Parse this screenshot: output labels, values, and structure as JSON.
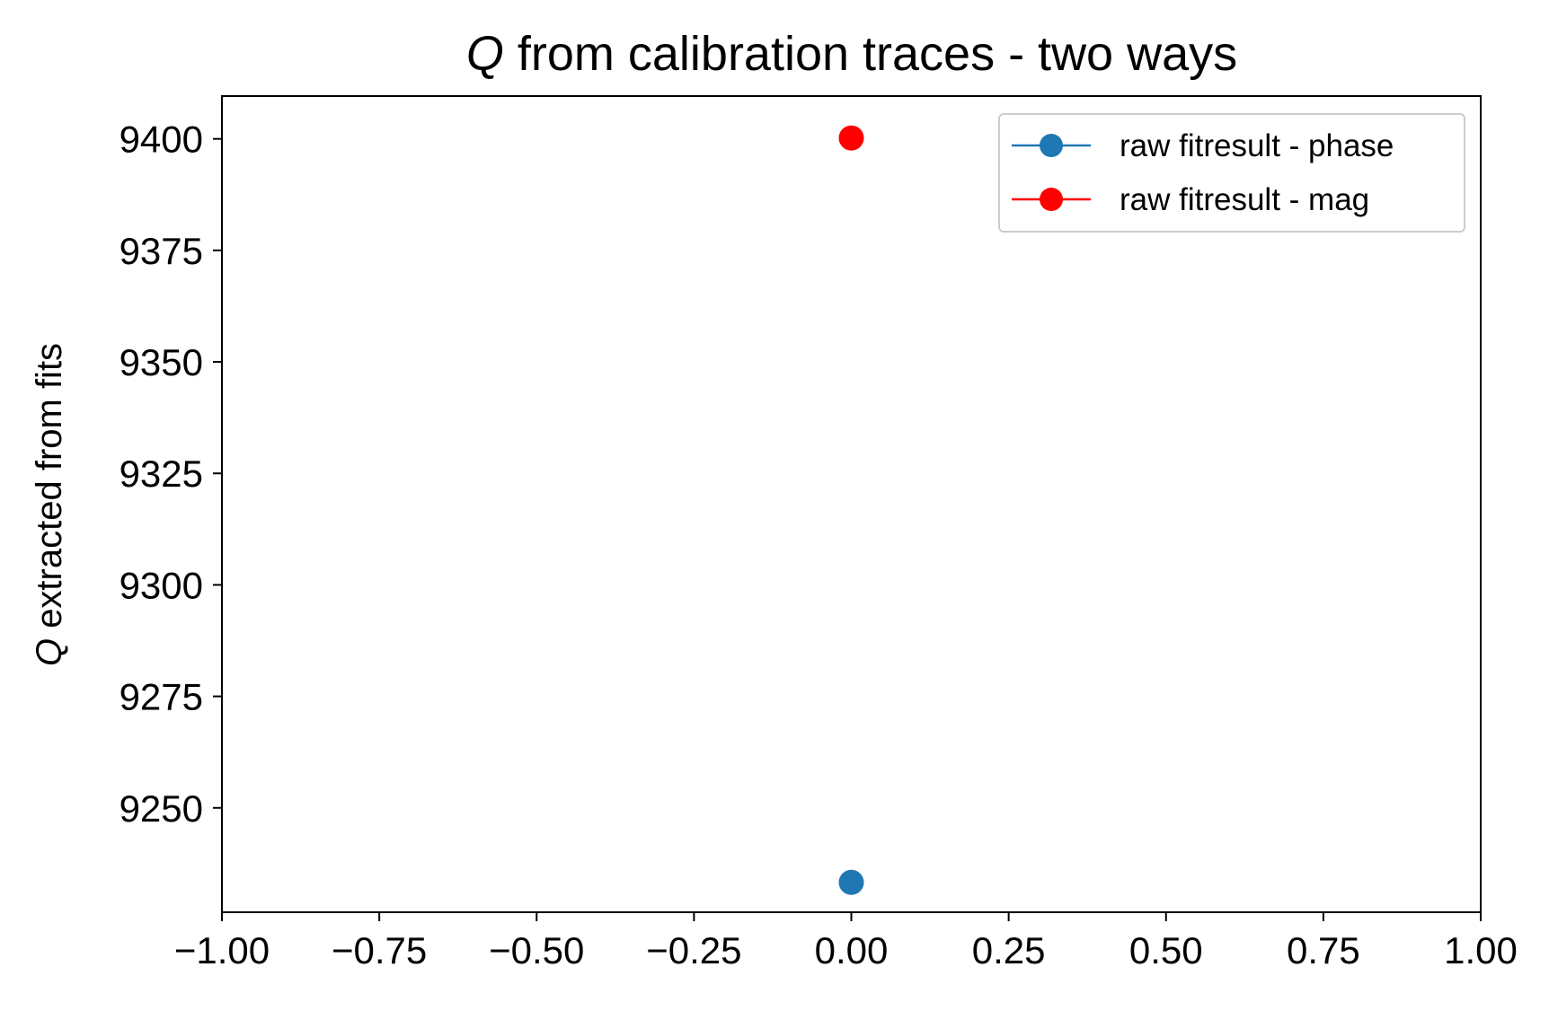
{
  "chart_data": {
    "type": "scatter",
    "title": {
      "q": "Q",
      "rest": " from calibration traces - two ways"
    },
    "xlabel": "",
    "ylabel": {
      "q": "Q",
      "rest": " extracted from fits"
    },
    "xlim": [
      -1.0,
      1.0
    ],
    "ylim": [
      9226.6,
      9409.6
    ],
    "x_ticks": [
      -1.0,
      -0.75,
      -0.5,
      -0.25,
      0.0,
      0.25,
      0.5,
      0.75,
      1.0
    ],
    "x_tick_labels": [
      "−1.00",
      "−0.75",
      "−0.50",
      "−0.25",
      "0.00",
      "0.25",
      "0.50",
      "0.75",
      "1.00"
    ],
    "y_ticks": [
      9250,
      9275,
      9300,
      9325,
      9350,
      9375,
      9400
    ],
    "y_tick_labels": [
      "9250",
      "9275",
      "9300",
      "9325",
      "9350",
      "9375",
      "9400"
    ],
    "grid": false,
    "legend_position": "top-right",
    "series": [
      {
        "name": "raw fitresult - phase",
        "color": "#1f77b4",
        "marker": "circle-line",
        "x": [
          0.0
        ],
        "y": [
          9233.3
        ]
      },
      {
        "name": "raw fitresult - mag",
        "color": "#ff0000",
        "marker": "circle-line",
        "x": [
          0.0
        ],
        "y": [
          9400.2
        ]
      }
    ]
  }
}
